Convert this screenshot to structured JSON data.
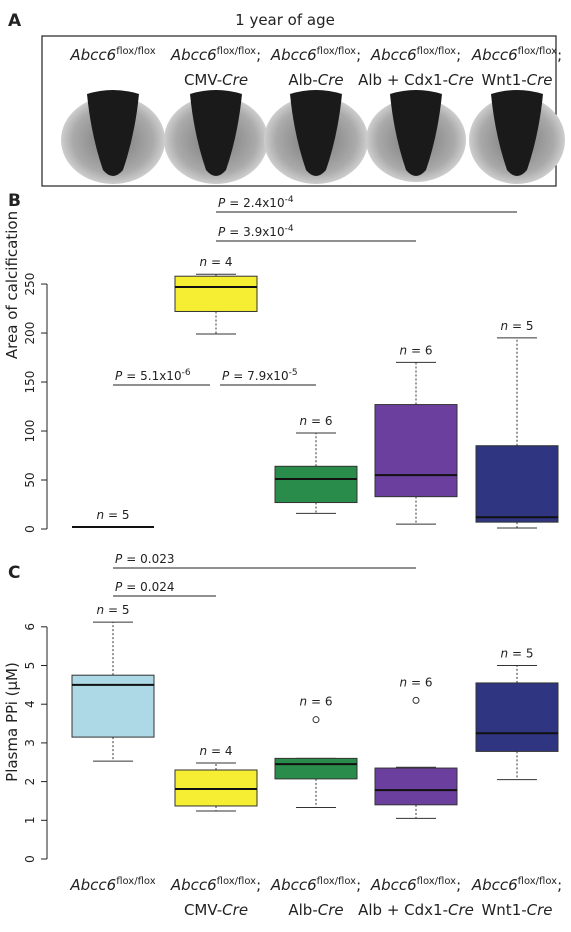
{
  "panel_labels": [
    "A",
    "B",
    "C"
  ],
  "panel_a_title": "1 year of age",
  "genotypes": [
    {
      "gene": "Abcc6",
      "allele": "flox/flox"
    },
    {
      "gene": "Abcc6",
      "allele": "flox/flox",
      "sep": ";",
      "driver": "CMV-",
      "cre": "Cre"
    },
    {
      "gene": "Abcc6",
      "allele": "flox/flox",
      "sep": ";",
      "driver": "Alb-",
      "cre": "Cre"
    },
    {
      "gene": "Abcc6",
      "allele": "flox/flox",
      "sep": ";",
      "driver": "Alb + Cdx1-",
      "cre": "Cre"
    },
    {
      "gene": "Abcc6",
      "allele": "flox/flox",
      "sep": ";",
      "driver": "Wnt1-",
      "cre": "Cre"
    }
  ],
  "chart_data": [
    {
      "type": "box",
      "y_label": "Area of calcification",
      "ylim": [
        -10,
        268
      ],
      "yticks": [
        0,
        50,
        100,
        150,
        200,
        250
      ],
      "p_symbol": "P",
      "n_symbol": "n",
      "boxes": [
        {
          "color": "#ffffff",
          "min": 2,
          "q1": 2,
          "median": 2,
          "q3": 2,
          "max": 2,
          "outliers": []
        },
        {
          "color": "#f5ee32",
          "min": 199,
          "q1": 222,
          "median": 247,
          "q3": 258,
          "max": 260,
          "outliers": []
        },
        {
          "color": "#2a8c4a",
          "min": 16,
          "q1": 27,
          "median": 51,
          "q3": 64,
          "max": 98,
          "outliers": []
        },
        {
          "color": "#6b3f9e",
          "min": 5,
          "q1": 33,
          "median": 55,
          "q3": 127,
          "max": 170,
          "outliers": []
        },
        {
          "color": "#2f3580",
          "min": 1,
          "q1": 7,
          "median": 12,
          "q3": 85,
          "max": 195,
          "outliers": []
        }
      ],
      "n_labels": [
        "= 5",
        "= 4",
        "= 6",
        "= 6",
        "= 5"
      ],
      "annotations": [
        {
          "text": "= 2.4x10",
          "exponent": "-4"
        },
        {
          "text": "= 3.9x10",
          "exponent": "-4"
        },
        {
          "text": "= 5.1x10",
          "exponent": "-6"
        },
        {
          "text": "= 7.9x10",
          "exponent": "-5"
        }
      ]
    },
    {
      "type": "box",
      "y_label": "Plasma PPi (µM)",
      "ylim": [
        -0.3,
        6.6
      ],
      "yticks": [
        0,
        1,
        2,
        3,
        4,
        5,
        6
      ],
      "p_symbol": "P",
      "n_symbol": "n",
      "boxes": [
        {
          "color": "#add8e6",
          "min": 2.53,
          "q1": 3.15,
          "median": 4.5,
          "q3": 4.75,
          "max": 6.12,
          "outliers": []
        },
        {
          "color": "#f5ee32",
          "min": 1.24,
          "q1": 1.37,
          "median": 1.81,
          "q3": 2.3,
          "max": 2.48,
          "outliers": []
        },
        {
          "color": "#2a8c4a",
          "min": 1.33,
          "q1": 2.07,
          "median": 2.45,
          "q3": 2.6,
          "max": 2.6,
          "outliers": [
            3.6
          ]
        },
        {
          "color": "#6b3f9e",
          "min": 1.05,
          "q1": 1.4,
          "median": 1.78,
          "q3": 2.35,
          "max": 2.37,
          "outliers": [
            4.1
          ]
        },
        {
          "color": "#2f3580",
          "min": 2.05,
          "q1": 2.78,
          "median": 3.25,
          "q3": 4.55,
          "max": 5.0,
          "outliers": []
        }
      ],
      "n_labels": [
        "= 5",
        "= 4",
        "= 6",
        "= 6",
        "= 5"
      ],
      "annotations": [
        {
          "text": "= 0.023"
        },
        {
          "text": "= 0.024"
        }
      ]
    }
  ]
}
